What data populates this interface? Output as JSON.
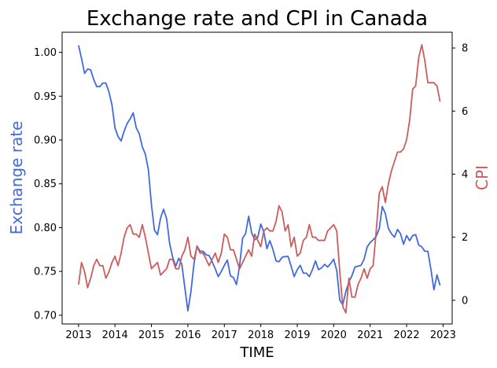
{
  "chart_data": {
    "type": "line",
    "title": "Exchange rate and CPI in Canada",
    "xlabel": "TIME",
    "x_ticks": [
      "2013",
      "2014",
      "2015",
      "2016",
      "2017",
      "2018",
      "2019",
      "2020",
      "2021",
      "2022",
      "2023"
    ],
    "xlim": [
      2012.55,
      2023.25
    ],
    "grid": false,
    "legend": "none",
    "left_axis": {
      "label": "Exchange rate",
      "color": "#4169E1",
      "ylim": [
        0.69,
        1.023
      ],
      "ticks": [
        "0.70",
        "0.75",
        "0.80",
        "0.85",
        "0.90",
        "0.95",
        "1.00"
      ]
    },
    "right_axis": {
      "label": "CPI",
      "color": "#CD5C5C",
      "ylim": [
        -0.75,
        8.5
      ],
      "ticks": [
        "0",
        "2",
        "4",
        "6",
        "8"
      ]
    },
    "series": [
      {
        "axis": "left",
        "color": "#4169E1",
        "x": [
          2013.0,
          2013.083,
          2013.167,
          2013.25,
          2013.333,
          2013.417,
          2013.5,
          2013.583,
          2013.667,
          2013.75,
          2013.833,
          2013.917,
          2014.0,
          2014.083,
          2014.167,
          2014.25,
          2014.333,
          2014.417,
          2014.5,
          2014.583,
          2014.667,
          2014.75,
          2014.833,
          2014.917,
          2015.0,
          2015.083,
          2015.167,
          2015.25,
          2015.333,
          2015.417,
          2015.5,
          2015.583,
          2015.667,
          2015.75,
          2015.833,
          2015.917,
          2016.0,
          2016.083,
          2016.167,
          2016.25,
          2016.333,
          2016.417,
          2016.5,
          2016.583,
          2016.667,
          2016.75,
          2016.833,
          2016.917,
          2017.0,
          2017.083,
          2017.167,
          2017.25,
          2017.333,
          2017.417,
          2017.5,
          2017.583,
          2017.667,
          2017.75,
          2017.833,
          2017.917,
          2018.0,
          2018.083,
          2018.167,
          2018.25,
          2018.333,
          2018.417,
          2018.5,
          2018.583,
          2018.667,
          2018.75,
          2018.833,
          2018.917,
          2019.0,
          2019.083,
          2019.167,
          2019.25,
          2019.333,
          2019.417,
          2019.5,
          2019.583,
          2019.667,
          2019.75,
          2019.833,
          2019.917,
          2020.0,
          2020.083,
          2020.167,
          2020.25,
          2020.333,
          2020.417,
          2020.5,
          2020.583,
          2020.667,
          2020.75,
          2020.833,
          2020.917,
          2021.0,
          2021.083,
          2021.167,
          2021.25,
          2021.333,
          2021.417,
          2021.5,
          2021.583,
          2021.667,
          2021.75,
          2021.833,
          2021.917,
          2022.0,
          2022.083,
          2022.167,
          2022.25,
          2022.333,
          2022.417,
          2022.5,
          2022.583,
          2022.667,
          2022.75,
          2022.833,
          2022.917
        ],
        "y": [
          1.008,
          0.993,
          0.976,
          0.981,
          0.98,
          0.969,
          0.961,
          0.961,
          0.965,
          0.965,
          0.955,
          0.94,
          0.914,
          0.904,
          0.899,
          0.91,
          0.919,
          0.924,
          0.931,
          0.914,
          0.907,
          0.892,
          0.884,
          0.866,
          0.826,
          0.797,
          0.792,
          0.811,
          0.821,
          0.81,
          0.782,
          0.766,
          0.756,
          0.765,
          0.758,
          0.731,
          0.705,
          0.727,
          0.759,
          0.779,
          0.773,
          0.773,
          0.769,
          0.768,
          0.761,
          0.753,
          0.744,
          0.75,
          0.757,
          0.763,
          0.745,
          0.743,
          0.735,
          0.756,
          0.788,
          0.793,
          0.813,
          0.794,
          0.786,
          0.789,
          0.804,
          0.795,
          0.776,
          0.785,
          0.775,
          0.762,
          0.761,
          0.766,
          0.767,
          0.767,
          0.756,
          0.744,
          0.752,
          0.757,
          0.748,
          0.748,
          0.744,
          0.752,
          0.762,
          0.752,
          0.754,
          0.758,
          0.755,
          0.759,
          0.764,
          0.751,
          0.717,
          0.712,
          0.727,
          0.738,
          0.745,
          0.755,
          0.756,
          0.757,
          0.764,
          0.778,
          0.783,
          0.786,
          0.79,
          0.799,
          0.824,
          0.816,
          0.799,
          0.793,
          0.789,
          0.798,
          0.793,
          0.781,
          0.791,
          0.785,
          0.791,
          0.792,
          0.78,
          0.778,
          0.773,
          0.773,
          0.752,
          0.729,
          0.746,
          0.734
        ]
      },
      {
        "axis": "right",
        "color": "#CD5C5C",
        "x": [
          2013.0,
          2013.083,
          2013.167,
          2013.25,
          2013.333,
          2013.417,
          2013.5,
          2013.583,
          2013.667,
          2013.75,
          2013.833,
          2013.917,
          2014.0,
          2014.083,
          2014.167,
          2014.25,
          2014.333,
          2014.417,
          2014.5,
          2014.583,
          2014.667,
          2014.75,
          2014.833,
          2014.917,
          2015.0,
          2015.083,
          2015.167,
          2015.25,
          2015.333,
          2015.417,
          2015.5,
          2015.583,
          2015.667,
          2015.75,
          2015.833,
          2015.917,
          2016.0,
          2016.083,
          2016.167,
          2016.25,
          2016.333,
          2016.417,
          2016.5,
          2016.583,
          2016.667,
          2016.75,
          2016.833,
          2016.917,
          2017.0,
          2017.083,
          2017.167,
          2017.25,
          2017.333,
          2017.417,
          2017.5,
          2017.583,
          2017.667,
          2017.75,
          2017.833,
          2017.917,
          2018.0,
          2018.083,
          2018.167,
          2018.25,
          2018.333,
          2018.417,
          2018.5,
          2018.583,
          2018.667,
          2018.75,
          2018.833,
          2018.917,
          2019.0,
          2019.083,
          2019.167,
          2019.25,
          2019.333,
          2019.417,
          2019.5,
          2019.583,
          2019.667,
          2019.75,
          2019.833,
          2019.917,
          2020.0,
          2020.083,
          2020.167,
          2020.25,
          2020.333,
          2020.417,
          2020.5,
          2020.583,
          2020.667,
          2020.75,
          2020.833,
          2020.917,
          2021.0,
          2021.083,
          2021.167,
          2021.25,
          2021.333,
          2021.417,
          2021.5,
          2021.583,
          2021.667,
          2021.75,
          2021.833,
          2021.917,
          2022.0,
          2022.083,
          2022.167,
          2022.25,
          2022.333,
          2022.417,
          2022.5,
          2022.583,
          2022.667,
          2022.75,
          2022.833,
          2022.917
        ],
        "y": [
          0.5,
          1.2,
          0.9,
          0.4,
          0.7,
          1.1,
          1.3,
          1.1,
          1.1,
          0.7,
          0.9,
          1.2,
          1.4,
          1.1,
          1.5,
          2.0,
          2.3,
          2.4,
          2.1,
          2.1,
          2.0,
          2.4,
          2.0,
          1.5,
          1.0,
          1.1,
          1.2,
          0.8,
          0.9,
          1.0,
          1.3,
          1.3,
          1.0,
          1.0,
          1.4,
          1.6,
          2.0,
          1.4,
          1.3,
          1.7,
          1.5,
          1.5,
          1.3,
          1.1,
          1.3,
          1.5,
          1.2,
          1.5,
          2.1,
          2.0,
          1.6,
          1.6,
          1.3,
          1.0,
          1.2,
          1.4,
          1.6,
          1.4,
          2.1,
          1.9,
          1.7,
          2.2,
          2.3,
          2.2,
          2.2,
          2.5,
          3.0,
          2.8,
          2.2,
          2.4,
          1.7,
          2.0,
          1.4,
          1.5,
          1.9,
          2.0,
          2.4,
          2.0,
          2.0,
          1.9,
          1.9,
          1.9,
          2.2,
          2.3,
          2.4,
          2.2,
          0.9,
          -0.2,
          -0.4,
          0.7,
          0.1,
          0.1,
          0.5,
          0.7,
          1.0,
          0.7,
          1.0,
          1.1,
          2.2,
          3.4,
          3.6,
          3.1,
          3.7,
          4.1,
          4.4,
          4.7,
          4.7,
          4.8,
          5.1,
          5.7,
          6.7,
          6.8,
          7.7,
          8.1,
          7.6,
          6.9,
          6.9,
          6.9,
          6.8,
          6.3
        ]
      }
    ]
  }
}
